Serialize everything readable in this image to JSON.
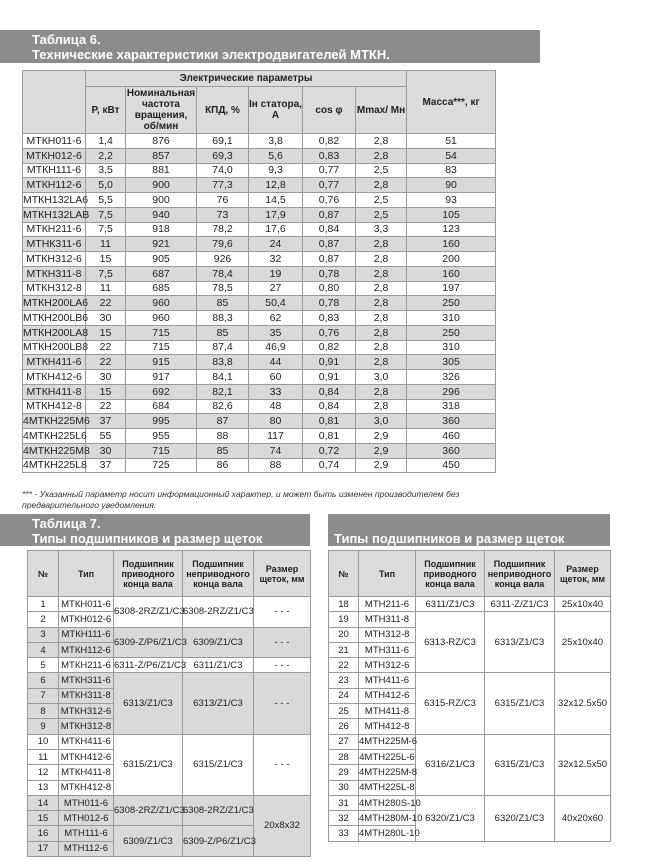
{
  "table6": {
    "title_line1": "Таблица  6.",
    "title_line2": "Технические характеристики электродвигателей МТКН.",
    "group_header": "Электрические параметры",
    "headers": [
      "P, кВт",
      "Номинальная частота вращения, об/мин",
      "КПД, %",
      "Iн статора, А",
      "cos φ",
      "Mmax/ Mн",
      "Масса***, кг"
    ],
    "rows": [
      [
        "МТКН011-6",
        "1,4",
        "876",
        "69,1",
        "3,8",
        "0,82",
        "2,8",
        "51"
      ],
      [
        "МТКН012-6",
        "2,2",
        "857",
        "69,3",
        "5,6",
        "0,83",
        "2,8",
        "54"
      ],
      [
        "МТКН111-6",
        "3,5",
        "881",
        "74,0",
        "9,3",
        "0,77",
        "2,5",
        "83"
      ],
      [
        "МТКН112-6",
        "5,0",
        "900",
        "77,3",
        "12,8",
        "0,77",
        "2,8",
        "90"
      ],
      [
        "МТКН132LA6",
        "5,5",
        "900",
        "76",
        "14,5",
        "0,76",
        "2,5",
        "93"
      ],
      [
        "МТКН132LAB",
        "7,5",
        "940",
        "73",
        "17,9",
        "0,87",
        "2,5",
        "105"
      ],
      [
        "МТКН211-6",
        "7,5",
        "918",
        "78,2",
        "17,6",
        "0,84",
        "3,3",
        "123"
      ],
      [
        "МТНК311-6",
        "11",
        "921",
        "79,6",
        "24",
        "0,87",
        "2,8",
        "160"
      ],
      [
        "МТКН312-6",
        "15",
        "905",
        "926",
        "32",
        "0,87",
        "2,8",
        "200"
      ],
      [
        "МТКН311-8",
        "7,5",
        "687",
        "78,4",
        "19",
        "0,78",
        "2,8",
        "160"
      ],
      [
        "МТКН312-8",
        "11",
        "685",
        "78,5",
        "27",
        "0,80",
        "2,8",
        "197"
      ],
      [
        "МТКН200LA6",
        "22",
        "960",
        "85",
        "50,4",
        "0,78",
        "2,8",
        "250"
      ],
      [
        "МТКН200LB6",
        "30",
        "960",
        "88,3",
        "62",
        "0,83",
        "2,8",
        "310"
      ],
      [
        "МТКН200LA8",
        "15",
        "715",
        "85",
        "35",
        "0,76",
        "2,8",
        "250"
      ],
      [
        "МТКН200LB8",
        "22",
        "715",
        "87,4",
        "46,9",
        "0,82",
        "2,8",
        "310"
      ],
      [
        "МТКН411-6",
        "22",
        "915",
        "83,8",
        "44",
        "0,91",
        "2,8",
        "305"
      ],
      [
        "МТКН412-6",
        "30",
        "917",
        "84,1",
        "60",
        "0,91",
        "3,0",
        "326"
      ],
      [
        "МТКН411-8",
        "15",
        "692",
        "82,1",
        "33",
        "0,84",
        "2,8",
        "296"
      ],
      [
        "МТКН412-8",
        "22",
        "684",
        "82,6",
        "48",
        "0,84",
        "2,8",
        "318"
      ],
      [
        "4МТКН225М6",
        "37",
        "995",
        "87",
        "80",
        "0,81",
        "3,0",
        "360"
      ],
      [
        "4МТКН225L6",
        "55",
        "955",
        "88",
        "117",
        "0,81",
        "2,9",
        "460"
      ],
      [
        "4МТКН225М8",
        "30",
        "715",
        "85",
        "74",
        "0,72",
        "2,9",
        "360"
      ],
      [
        "4МТКН225L8",
        "37",
        "725",
        "86",
        "88",
        "0,74",
        "2,9",
        "450"
      ]
    ],
    "footnote": "*** - Указанный параметр носит информационный характер, и может быть изменен производителем без предварительного уведомления."
  },
  "table7": {
    "title_line1": "Таблица 7.",
    "title_line2": "Типы подшипников и размер щеток",
    "headers": [
      "№",
      "Тип",
      "Подшипник приводного конца вала",
      "Подшипник неприводного конца вала",
      "Размер щеток, мм"
    ],
    "left_rows": [
      {
        "no": "1",
        "type": "МТКН011-6",
        "shade": false,
        "drive": "6308-2RZ/Z1/C3",
        "drive_rows": 2,
        "nondrive": "6308-2RZ/Z1/C3",
        "nondrive_rows": 2,
        "brush": "- - -",
        "brush_rows": 2
      },
      {
        "no": "2",
        "type": "МТКН012-6",
        "shade": false
      },
      {
        "no": "3",
        "type": "МТКН111-6",
        "shade": true,
        "drive": "6309-Z/P6/Z1/C3",
        "drive_rows": 2,
        "nondrive": "6309/Z1/C3",
        "nondrive_rows": 2,
        "brush": "- - -",
        "brush_rows": 2
      },
      {
        "no": "4",
        "type": "МТКН112-6",
        "shade": true
      },
      {
        "no": "5",
        "type": "МТКН211-6",
        "shade": false,
        "drive": "6311-Z/P6/Z1/C3",
        "drive_rows": 1,
        "nondrive": "6311/Z1/C3",
        "nondrive_rows": 1,
        "brush": "- - -",
        "brush_rows": 1
      },
      {
        "no": "6",
        "type": "МТКН311-6",
        "shade": true,
        "drive": "6313/Z1/C3",
        "drive_rows": 4,
        "nondrive": "6313/Z1/C3",
        "nondrive_rows": 4,
        "brush": "- - -",
        "brush_rows": 4
      },
      {
        "no": "7",
        "type": "МТКН311-8",
        "shade": true
      },
      {
        "no": "8",
        "type": "МТКН312-6",
        "shade": true
      },
      {
        "no": "9",
        "type": "МТКН312-8",
        "shade": true
      },
      {
        "no": "10",
        "type": "МТКН411-6",
        "shade": false,
        "drive": "6315/Z1/C3",
        "drive_rows": 4,
        "nondrive": "6315/Z1/C3",
        "nondrive_rows": 4,
        "brush": "- - -",
        "brush_rows": 4
      },
      {
        "no": "11",
        "type": "МТКН412-6",
        "shade": false
      },
      {
        "no": "12",
        "type": "МТКН411-8",
        "shade": false
      },
      {
        "no": "13",
        "type": "МТКН412-8",
        "shade": false
      },
      {
        "no": "14",
        "type": "МТН011-6",
        "shade": true,
        "drive": "6308-2RZ/Z1/C3",
        "drive_rows": 2,
        "nondrive": "6308-2RZ/Z1/C3",
        "nondrive_rows": 2,
        "brush": "20x8x32",
        "brush_rows": 4
      },
      {
        "no": "15",
        "type": "МТН012-6",
        "shade": true
      },
      {
        "no": "16",
        "type": "МТН111-6",
        "shade": true,
        "drive": "6309/Z1/C3",
        "drive_rows": 2,
        "nondrive": "6309-Z/P6/Z1/C3",
        "nondrive_rows": 2
      },
      {
        "no": "17",
        "type": "МТН112-6",
        "shade": true
      }
    ],
    "right_rows": [
      {
        "no": "18",
        "type": "МТН211-6",
        "drive": "6311/Z1/C3",
        "drive_rows": 1,
        "nondrive": "6311-Z/Z1/C3",
        "nondrive_rows": 1,
        "brush": "25x10x40",
        "brush_rows": 1
      },
      {
        "no": "19",
        "type": "МТН311-8",
        "drive": "6313-RZ/C3",
        "drive_rows": 4,
        "nondrive": "6313/Z1/C3",
        "nondrive_rows": 4,
        "brush": "25x10x40",
        "brush_rows": 4
      },
      {
        "no": "20",
        "type": "МТН312-8"
      },
      {
        "no": "21",
        "type": "МТН311-6"
      },
      {
        "no": "22",
        "type": "МТН312-6"
      },
      {
        "no": "23",
        "type": "МТН411-6",
        "drive": "6315-RZ/C3",
        "drive_rows": 4,
        "nondrive": "6315/Z1/C3",
        "nondrive_rows": 4,
        "brush": "32x12.5x50",
        "brush_rows": 4
      },
      {
        "no": "24",
        "type": "МТН412-6"
      },
      {
        "no": "25",
        "type": "МТН411-8"
      },
      {
        "no": "26",
        "type": "МТН412-8"
      },
      {
        "no": "27",
        "type": "4МТН225М-6",
        "drive": "6316/Z1/C3",
        "drive_rows": 4,
        "nondrive": "6315/Z1/C3",
        "nondrive_rows": 4,
        "brush": "32x12.5x50",
        "brush_rows": 4
      },
      {
        "no": "28",
        "type": "4МТН225L-6"
      },
      {
        "no": "29",
        "type": "4МТН225М-8"
      },
      {
        "no": "30",
        "type": "4МТН225L-8"
      },
      {
        "no": "31",
        "type": "4МТН280S-10",
        "drive": "6320/Z1/C3",
        "drive_rows": 3,
        "nondrive": "6320/Z1/C3",
        "nondrive_rows": 3,
        "brush": "40x20x60",
        "brush_rows": 3
      },
      {
        "no": "32",
        "type": "4МТН280М-10"
      },
      {
        "no": "33",
        "type": "4МТН280L-10"
      }
    ]
  },
  "colors": {
    "title_bar": "#8c8c8c",
    "header": "#dcdcdc",
    "shade": "#d9d9d9"
  }
}
